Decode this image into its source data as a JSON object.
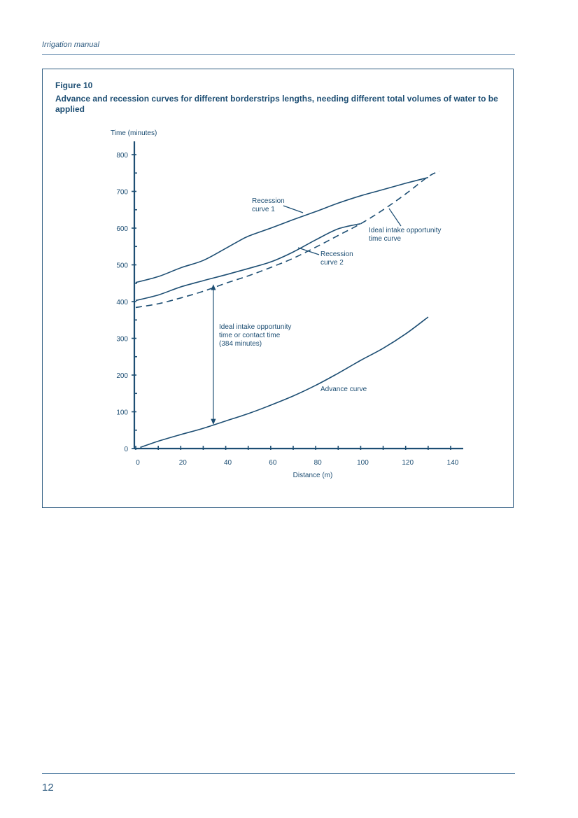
{
  "header": {
    "title": "Irrigation manual"
  },
  "figure": {
    "label": "Figure 10",
    "caption": "Advance and recession curves for different borderstrips lengths, needing different total volumes of water to be applied"
  },
  "chart_data": {
    "type": "line",
    "xlabel": "Distance (m)",
    "ylabel": "Time (minutes)",
    "xlim": [
      0,
      140
    ],
    "ylim": [
      0,
      800
    ],
    "x_ticks": [
      0,
      20,
      40,
      60,
      80,
      100,
      120,
      140
    ],
    "y_ticks": [
      0,
      100,
      200,
      300,
      400,
      500,
      600,
      700,
      800
    ],
    "grid": false,
    "series": [
      {
        "name": "Recession curve 1",
        "style": "solid",
        "x": [
          0,
          10,
          20,
          30,
          40,
          45,
          50,
          60,
          70,
          80,
          90,
          100,
          110,
          120,
          130
        ],
        "y": [
          452,
          468,
          492,
          512,
          545,
          562,
          578,
          600,
          623,
          645,
          668,
          688,
          705,
          722,
          738
        ]
      },
      {
        "name": "Recession curve 2",
        "style": "solid",
        "x": [
          0,
          10,
          20,
          30,
          40,
          50,
          60,
          70,
          80,
          90,
          100
        ],
        "y": [
          403,
          418,
          440,
          457,
          473,
          490,
          508,
          535,
          568,
          598,
          612
        ]
      },
      {
        "name": "Ideal intake opportunity time curve",
        "style": "dashed",
        "x": [
          0,
          10,
          20,
          30,
          40,
          50,
          60,
          70,
          80,
          90,
          100,
          110,
          120,
          130,
          135
        ],
        "y": [
          384,
          394,
          410,
          428,
          450,
          470,
          493,
          518,
          548,
          580,
          612,
          650,
          693,
          740,
          755
        ]
      },
      {
        "name": "Advance curve",
        "style": "solid",
        "x": [
          2,
          10,
          20,
          30,
          40,
          50,
          60,
          70,
          80,
          90,
          100,
          110,
          120,
          130
        ],
        "y": [
          3,
          20,
          38,
          55,
          75,
          95,
          118,
          143,
          172,
          205,
          240,
          273,
          312,
          358
        ]
      }
    ],
    "annotations": [
      {
        "lines": [
          "Recession",
          "curve   1"
        ]
      },
      {
        "lines": [
          "Ideal intake opportunity",
          "time curve"
        ]
      },
      {
        "lines": [
          "Recession",
          "curve  2"
        ]
      },
      {
        "lines": [
          "Ideal intake opportunity",
          "time or contact time",
          "(384 minutes)"
        ]
      },
      {
        "lines": [
          "Advance curve"
        ]
      }
    ]
  },
  "footer": {
    "page_number": "12"
  }
}
